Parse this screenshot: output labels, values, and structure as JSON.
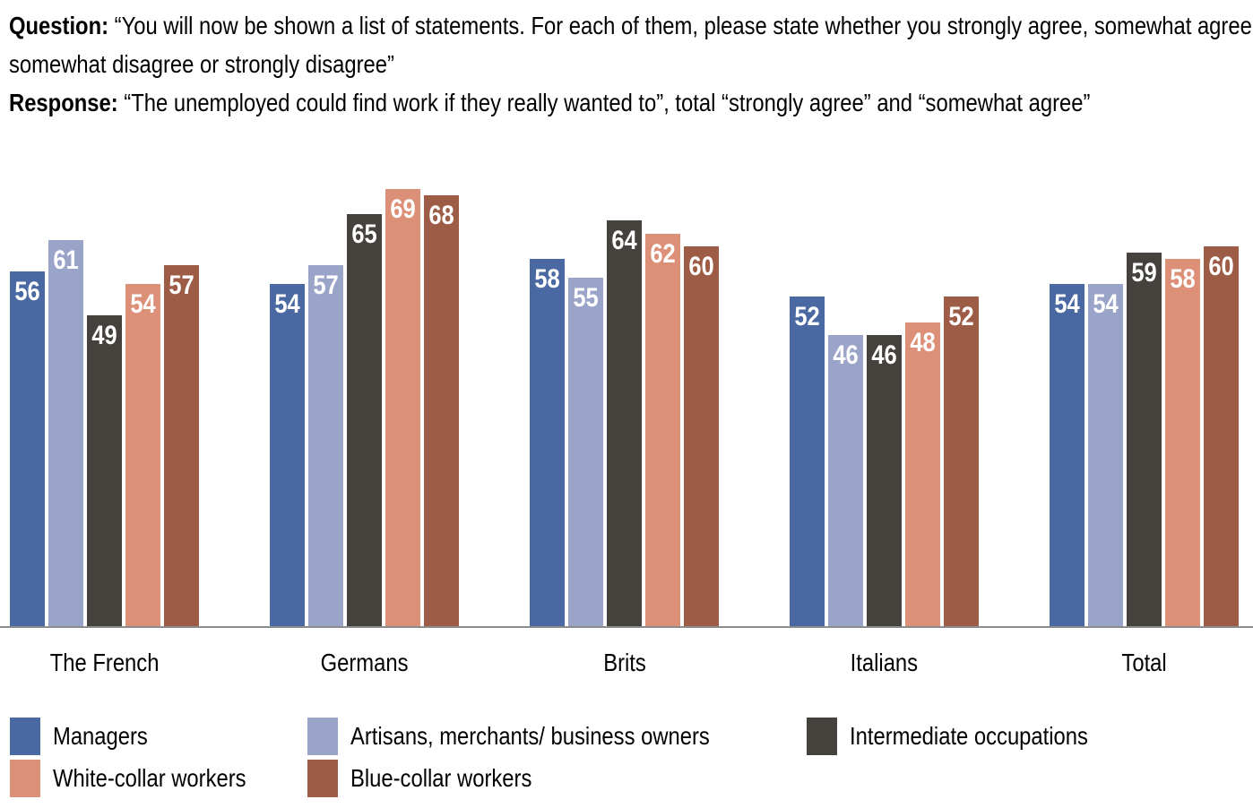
{
  "header": {
    "question_label": "Question:",
    "question_text": " “You will now be shown a list of statements. For each of them, please state whether you strongly agree, somewhat agree, somewhat disagree or strongly disagree”",
    "response_label": "Response:",
    "response_text": " “The unemployed could find work if they really wanted to”, total “strongly agree” and “somewhat agree”"
  },
  "chart_data": {
    "type": "bar",
    "categories": [
      "The French",
      "Germans",
      "Brits",
      "Italians",
      "Total"
    ],
    "series": [
      {
        "name": "Managers",
        "color": "#4a69a2",
        "values": [
          56,
          54,
          58,
          52,
          54
        ]
      },
      {
        "name": "Artisans, merchants/ business owners",
        "color": "#9aa4c8",
        "values": [
          61,
          57,
          55,
          46,
          54
        ]
      },
      {
        "name": "Intermediate occupations",
        "color": "#45413c",
        "values": [
          49,
          65,
          64,
          46,
          59
        ]
      },
      {
        "name": "White-collar workers",
        "color": "#dc9078",
        "values": [
          54,
          69,
          62,
          48,
          58
        ]
      },
      {
        "name": "Blue-collar workers",
        "color": "#9d5c46",
        "values": [
          57,
          68,
          60,
          52,
          60
        ]
      }
    ],
    "title": "",
    "xlabel": "",
    "ylabel": "",
    "ylim": [
      0,
      70.7
    ],
    "value_labels": "inside-top-white-bold",
    "grid": "off",
    "baseline_color": "#8c8c8c",
    "legend_position": "bottom"
  }
}
